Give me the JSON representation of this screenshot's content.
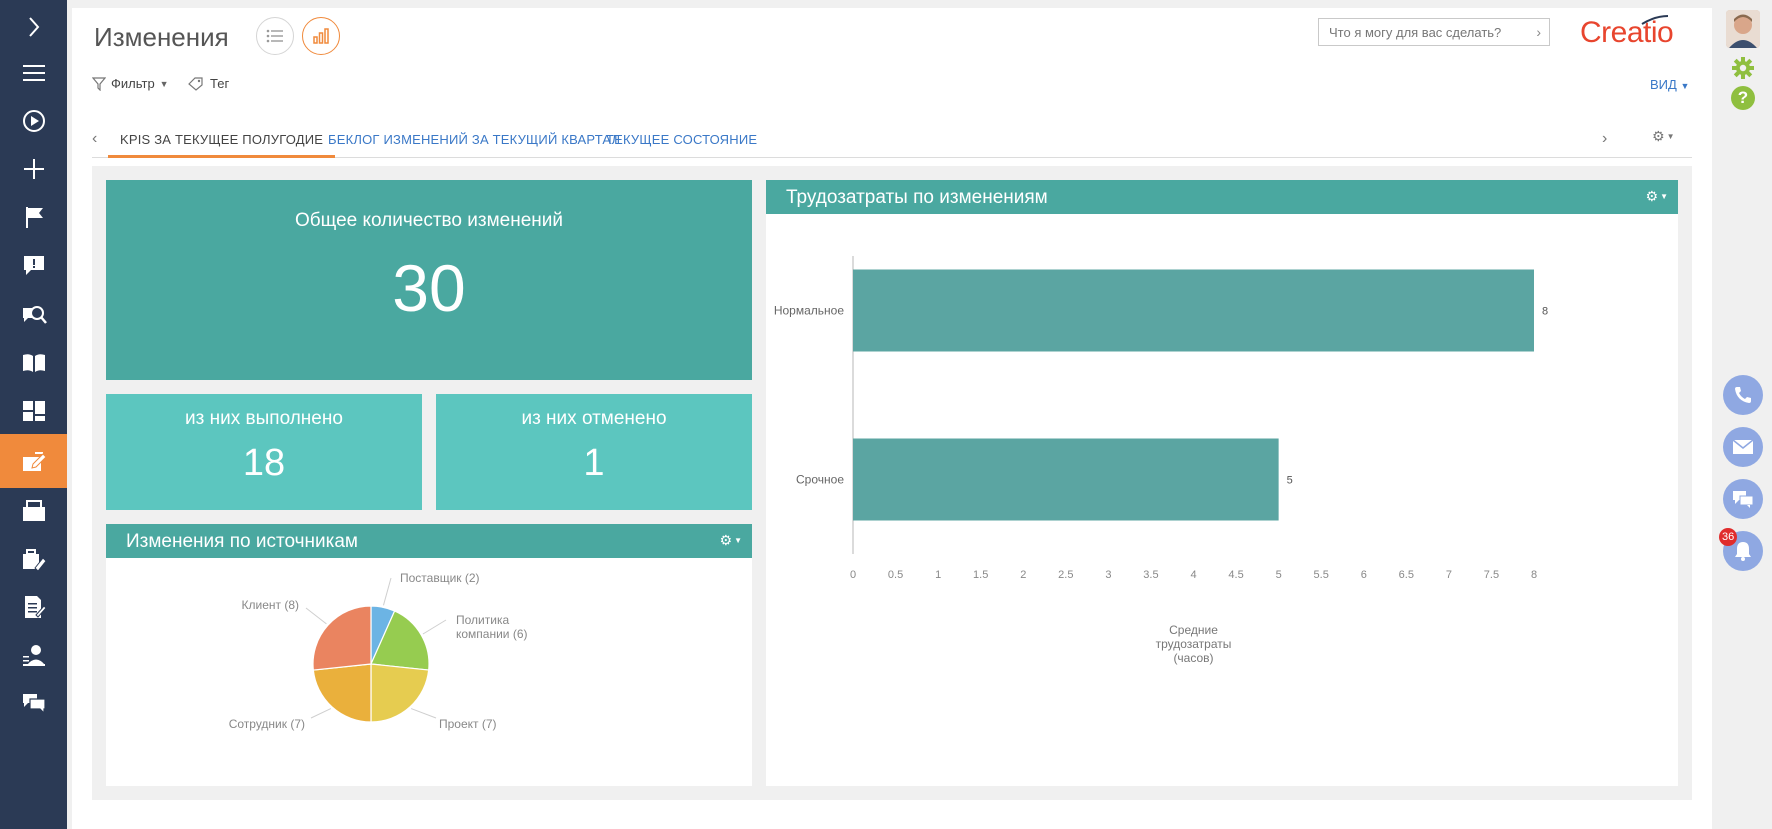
{
  "page": {
    "title": "Изменения",
    "search_placeholder": "Что я могу для вас сделать?",
    "logo_text": "Creatio",
    "filter_label": "Фильтр",
    "tag_label": "Тег",
    "view_label": "ВИД"
  },
  "tabs": [
    {
      "label": "KPIS ЗА ТЕКУЩЕЕ ПОЛУГОДИЕ",
      "active": true
    },
    {
      "label": "БЕКЛОГ ИЗМЕНЕНИЙ ЗА ТЕКУЩИЙ КВАРТАЛ",
      "active": false
    },
    {
      "label": "ТЕКУЩЕЕ СОСТОЯНИЕ",
      "active": false
    }
  ],
  "sidebar": {
    "items": [
      {
        "icon": "chevron-right-icon"
      },
      {
        "icon": "menu-icon"
      },
      {
        "icon": "play-icon"
      },
      {
        "icon": "plus-icon"
      },
      {
        "icon": "flag-icon"
      },
      {
        "icon": "alert-message-icon"
      },
      {
        "icon": "search-knowledge-icon"
      },
      {
        "icon": "book-icon"
      },
      {
        "icon": "dashboard-icon"
      },
      {
        "icon": "changes-icon",
        "active": true
      },
      {
        "icon": "releases-icon"
      },
      {
        "icon": "service-icon"
      },
      {
        "icon": "document-edit-icon"
      },
      {
        "icon": "user-settings-icon"
      },
      {
        "icon": "chat-icon"
      }
    ]
  },
  "kpis": {
    "total": {
      "title": "Общее количество изменений",
      "value": "30"
    },
    "done": {
      "title": "из них выполнено",
      "value": "18"
    },
    "cancelled": {
      "title": "из них отменено",
      "value": "1"
    }
  },
  "right_rail": {
    "notification_count": "36"
  },
  "colors": {
    "sidebar": "#2b3a55",
    "accent": "#f08a3c",
    "kpi_dark": "#4aa8a0",
    "kpi_light": "#5cc6bf",
    "bar": "#5ba5a2"
  },
  "chart_data": [
    {
      "type": "pie",
      "title": "Изменения по источникам",
      "labels": [
        "Поставщик (2)",
        "Политика компании (6)",
        "Проект (7)",
        "Сотрудник (7)",
        "Клиент (8)"
      ],
      "values": [
        2,
        6,
        7,
        7,
        8
      ],
      "colors": [
        "#6cb4e4",
        "#96cc50",
        "#e6cc50",
        "#eab03c",
        "#ea8460"
      ]
    },
    {
      "type": "bar",
      "orientation": "horizontal",
      "title": "Трудозатраты по изменениям",
      "categories": [
        "Нормальное",
        "Срочное"
      ],
      "values": [
        8,
        5
      ],
      "xlabel_lines": [
        "Средние",
        "трудозатраты",
        "(часов)"
      ],
      "xlim": [
        0,
        8
      ],
      "xticks": [
        "0",
        "0.5",
        "1",
        "1.5",
        "2",
        "2.5",
        "3",
        "3.5",
        "4",
        "4.5",
        "5",
        "5.5",
        "6",
        "6.5",
        "7",
        "7.5",
        "8"
      ]
    }
  ]
}
